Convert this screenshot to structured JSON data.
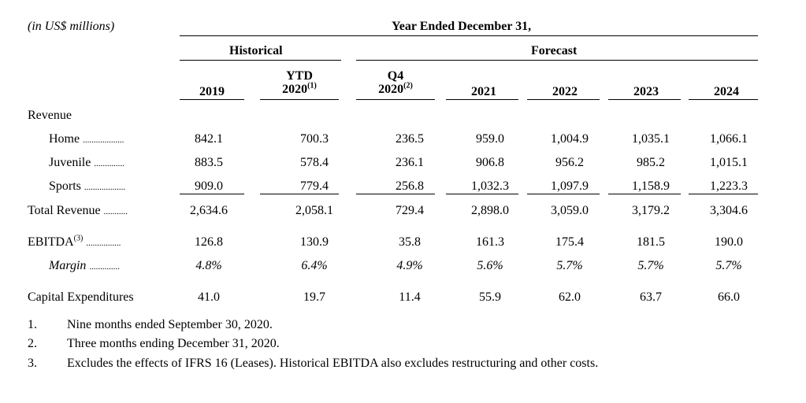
{
  "unit_note": "(in US$ millions)",
  "header": {
    "period": "Year Ended December 31,",
    "historical": "Historical",
    "forecast": "Forecast"
  },
  "columns": [
    {
      "line1": "",
      "line2": "2019",
      "sup": ""
    },
    {
      "line1": "YTD",
      "line2": "2020",
      "sup": "(1)"
    },
    {
      "line1": "Q4",
      "line2": "2020",
      "sup": "(2)"
    },
    {
      "line1": "",
      "line2": "2021",
      "sup": ""
    },
    {
      "line1": "",
      "line2": "2022",
      "sup": ""
    },
    {
      "line1": "",
      "line2": "2023",
      "sup": ""
    },
    {
      "line1": "",
      "line2": "2024",
      "sup": ""
    }
  ],
  "revenue_title": "Revenue",
  "rows": [
    {
      "label": "Home",
      "dots": "...................",
      "values": [
        "842.1",
        "700.3",
        "236.5",
        "959.0",
        "1,004.9",
        "1,035.1",
        "1,066.1"
      ]
    },
    {
      "label": "Juvenile",
      "dots": "..............",
      "values": [
        "883.5",
        "578.4",
        "236.1",
        "906.8",
        "956.2",
        "985.2",
        "1,015.1"
      ]
    },
    {
      "label": "Sports",
      "dots": "...................",
      "values": [
        "909.0",
        "779.4",
        "256.8",
        "1,032.3",
        "1,097.9",
        "1,158.9",
        "1,223.3"
      ]
    },
    {
      "label": "Total Revenue",
      "dots": "...........",
      "values": [
        "2,634.6",
        "2,058.1",
        "729.4",
        "2,898.0",
        "3,059.0",
        "3,179.2",
        "3,304.6"
      ]
    },
    {
      "label": "EBITDA",
      "sup": "(3)",
      "dots": "................",
      "values": [
        "126.8",
        "130.9",
        "35.8",
        "161.3",
        "175.4",
        "181.5",
        "190.0"
      ]
    },
    {
      "label": "Margin",
      "dots": "..............",
      "values": [
        "4.8%",
        "6.4%",
        "4.9%",
        "5.6%",
        "5.7%",
        "5.7%",
        "5.7%"
      ]
    },
    {
      "label": "Capital Expenditures",
      "dots": "",
      "values": [
        "41.0",
        "19.7",
        "11.4",
        "55.9",
        "62.0",
        "63.7",
        "66.0"
      ]
    }
  ],
  "footnotes": [
    {
      "num": "1.",
      "text": "Nine months ended September 30, 2020."
    },
    {
      "num": "2.",
      "text": "Three months ending December 31, 2020."
    },
    {
      "num": "3.",
      "text": "Excludes the effects of IFRS 16 (Leases). Historical EBITDA also excludes restructuring and other costs."
    }
  ]
}
